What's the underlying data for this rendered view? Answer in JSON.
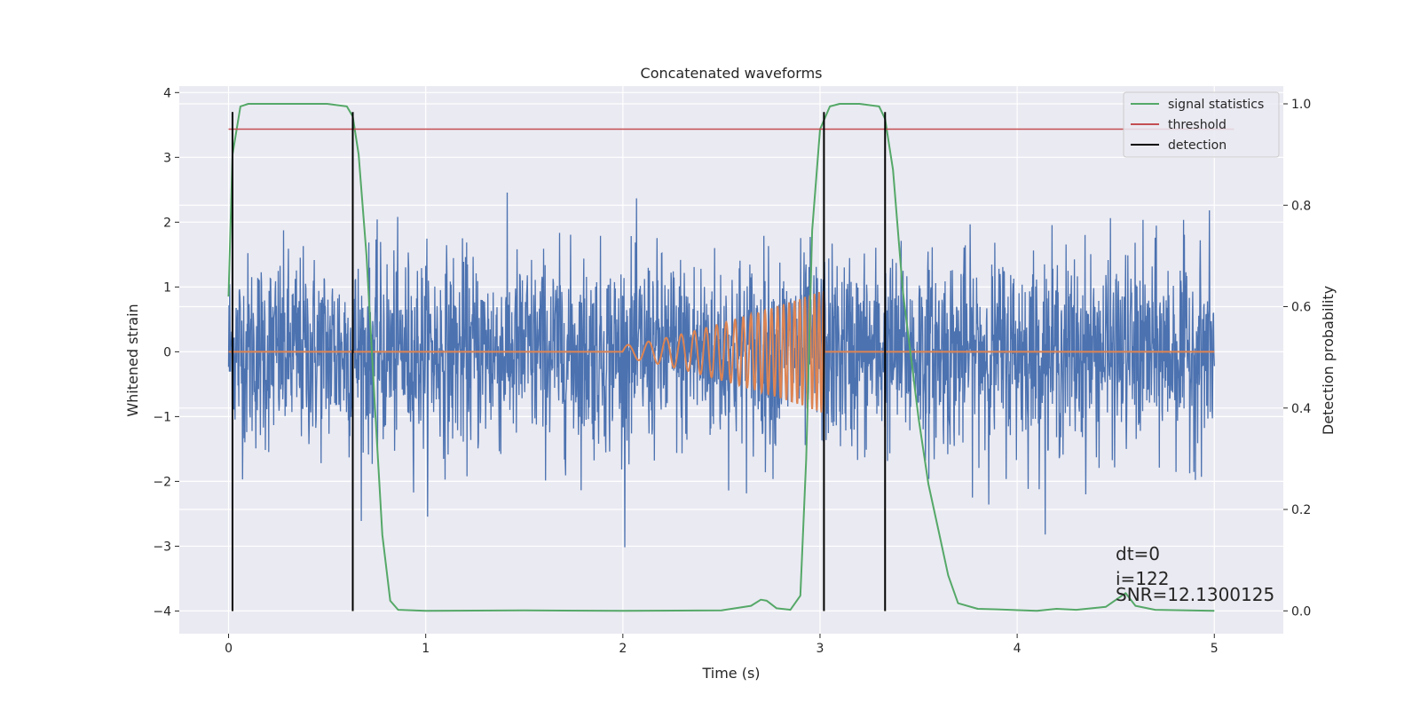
{
  "chart_data": {
    "type": "line",
    "title": "Concatenated waveforms",
    "xlabel": "Time (s)",
    "ylabel": "Whitened strain",
    "y2label": "Detection probability",
    "xlim": [
      -0.25,
      5.35
    ],
    "ylim": [
      -4.35,
      4.1
    ],
    "y2lim": [
      -0.045,
      1.035
    ],
    "xticks": [
      0,
      1,
      2,
      3,
      4,
      5
    ],
    "xtick_labels": [
      "0",
      "1",
      "2",
      "3",
      "4",
      "5"
    ],
    "yticks": [
      -4,
      -3,
      -2,
      -1,
      0,
      1,
      2,
      3,
      4
    ],
    "ytick_labels": [
      "−4",
      "−3",
      "−2",
      "−1",
      "0",
      "1",
      "2",
      "3",
      "4"
    ],
    "y2ticks": [
      0.0,
      0.2,
      0.4,
      0.6,
      0.8,
      1.0
    ],
    "y2tick_labels": [
      "0.0",
      "0.2",
      "0.4",
      "0.6",
      "0.8",
      "1.0"
    ],
    "grid": true,
    "legend_position": "top-right",
    "series": [
      {
        "name": "whitened strain",
        "axis": "left",
        "color": "#4c72b0",
        "x_range": [
          0,
          5
        ],
        "noise_std": 0.75,
        "peak_range": [
          -3.3,
          3.3
        ]
      },
      {
        "name": "injected waveform",
        "axis": "left",
        "color": "#dd8452",
        "x_range": [
          0,
          5
        ],
        "chirp_start": 2.0,
        "chirp_end": 3.02,
        "amplitude_start": 0.1,
        "amplitude_end": 0.95,
        "frequency_start": 9,
        "frequency_end": 45
      },
      {
        "name": "signal statistics",
        "axis": "right",
        "color": "#55a868",
        "x": [
          0.0,
          0.02,
          0.06,
          0.1,
          0.3,
          0.5,
          0.6,
          0.63,
          0.66,
          0.7,
          0.74,
          0.78,
          0.82,
          0.86,
          1.0,
          1.5,
          2.0,
          2.5,
          2.65,
          2.7,
          2.73,
          2.78,
          2.85,
          2.9,
          2.93,
          2.96,
          3.0,
          3.05,
          3.1,
          3.2,
          3.3,
          3.33,
          3.37,
          3.42,
          3.5,
          3.55,
          3.6,
          3.65,
          3.7,
          3.8,
          3.9,
          4.1,
          4.2,
          4.3,
          4.45,
          4.55,
          4.6,
          4.7,
          5.0
        ],
        "y": [
          0.62,
          0.9,
          0.995,
          1.0,
          1.0,
          1.0,
          0.995,
          0.975,
          0.9,
          0.7,
          0.42,
          0.15,
          0.02,
          0.002,
          0.0,
          0.001,
          0.0,
          0.001,
          0.01,
          0.022,
          0.02,
          0.005,
          0.002,
          0.03,
          0.3,
          0.75,
          0.95,
          0.995,
          1.0,
          1.0,
          0.995,
          0.97,
          0.87,
          0.63,
          0.38,
          0.25,
          0.16,
          0.07,
          0.015,
          0.004,
          0.003,
          0.0,
          0.004,
          0.002,
          0.008,
          0.035,
          0.01,
          0.002,
          0.0
        ]
      },
      {
        "name": "threshold",
        "axis": "right",
        "color": "#c44e52",
        "x": [
          0,
          5.1
        ],
        "y": [
          0.95,
          0.95
        ]
      },
      {
        "name": "detection",
        "axis": "left",
        "color": "#000000",
        "x_positions": [
          0.02,
          0.63,
          3.02,
          3.33
        ],
        "y_range": [
          -4,
          3.7
        ]
      }
    ],
    "legend": [
      {
        "label": "signal statistics",
        "color": "#55a868"
      },
      {
        "label": "threshold",
        "color": "#c44e52"
      },
      {
        "label": "detection",
        "color": "#000000"
      }
    ],
    "annotations": [
      "dt=0",
      "i=122",
      "SNR=12.1300125"
    ]
  },
  "colors": {
    "plot_background": "#eaeaf2",
    "grid": "#ffffff"
  }
}
